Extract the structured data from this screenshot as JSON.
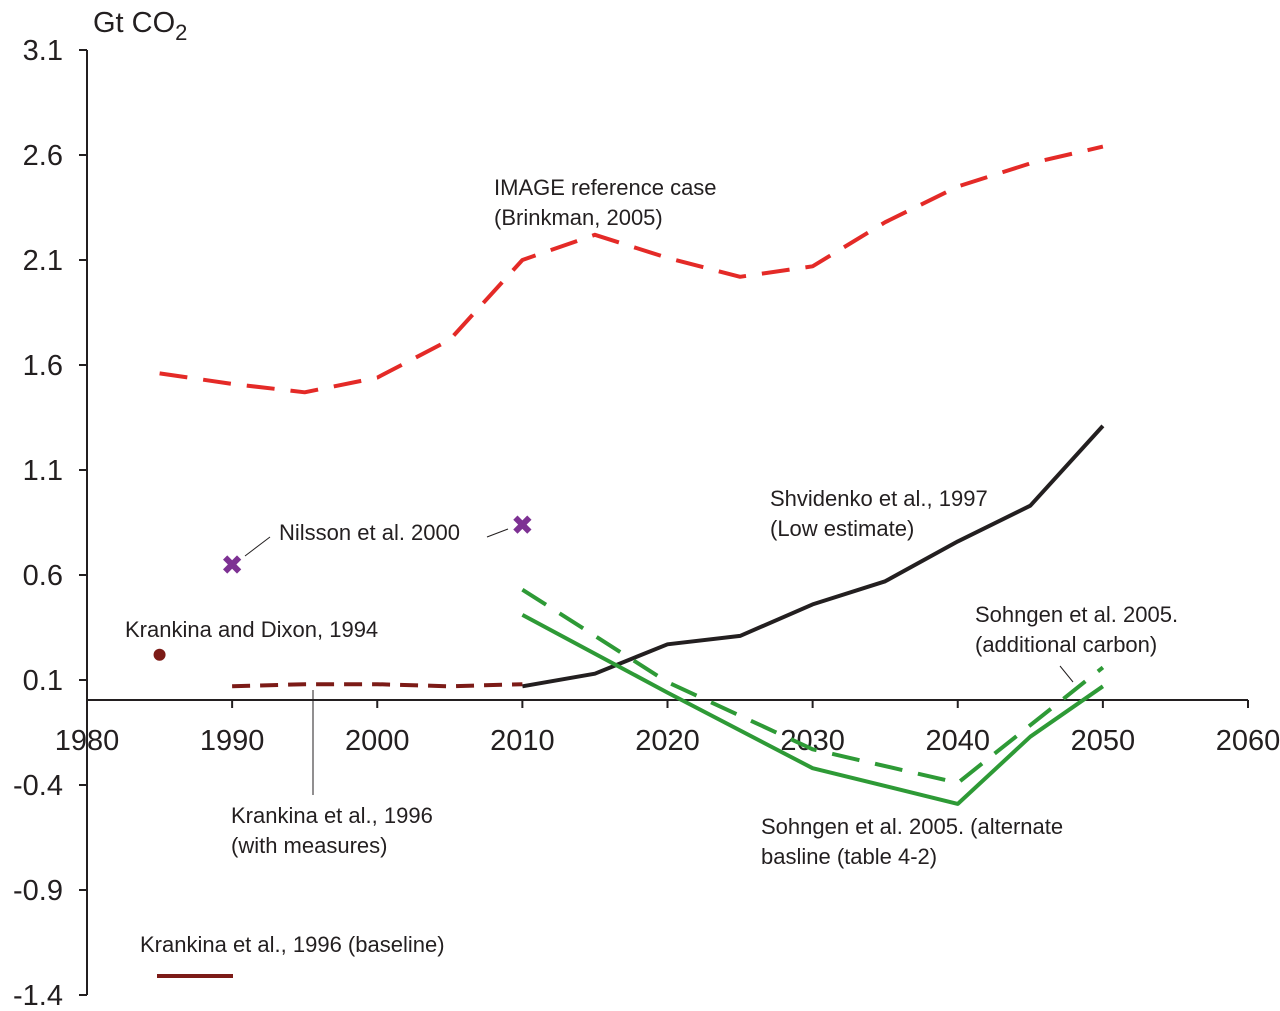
{
  "chart_data": {
    "type": "line",
    "unit": {
      "base": "Gt CO",
      "sub": "2"
    },
    "xlim": [
      1980,
      2060
    ],
    "ylim": [
      -1.4,
      3.1
    ],
    "x_ticks": [
      "1980",
      "1990",
      "2000",
      "2010",
      "2020",
      "2030",
      "2040",
      "2050",
      "2060"
    ],
    "y_ticks": [
      "3.1",
      "2.6",
      "2.1",
      "1.6",
      "1.1",
      "0.6",
      "0.1",
      "-0.4",
      "-0.9",
      "-1.4"
    ],
    "grid": false,
    "series": [
      {
        "key": "image",
        "color": "#e42a27",
        "style": "dashed",
        "x": [
          1985,
          1990,
          1995,
          2000,
          2005,
          2010,
          2015,
          2020,
          2025,
          2030,
          2035,
          2040,
          2045,
          2050
        ],
        "y": [
          1.56,
          1.51,
          1.47,
          1.54,
          1.72,
          2.1,
          2.22,
          2.11,
          2.02,
          2.07,
          2.28,
          2.45,
          2.56,
          2.64
        ]
      },
      {
        "key": "shvidenko",
        "color": "#231f20",
        "style": "solid",
        "x": [
          2010,
          2015,
          2020,
          2025,
          2030,
          2035,
          2040,
          2045,
          2050
        ],
        "y": [
          0.07,
          0.13,
          0.27,
          0.31,
          0.46,
          0.57,
          0.76,
          0.93,
          1.31
        ]
      },
      {
        "key": "sohngen_additional",
        "color": "#2e9a36",
        "style": "dashed",
        "x": [
          2010,
          2020,
          2030,
          2040,
          2050
        ],
        "y": [
          0.53,
          0.09,
          -0.23,
          -0.39,
          0.16
        ]
      },
      {
        "key": "sohngen_alternate",
        "color": "#2e9a36",
        "style": "solid",
        "x": [
          2010,
          2020,
          2030,
          2040,
          2045,
          2050
        ],
        "y": [
          0.41,
          0.04,
          -0.32,
          -0.49,
          -0.17,
          0.07
        ]
      },
      {
        "key": "krankina_measures",
        "color": "#7c1b17",
        "style": "dashed",
        "x": [
          1990,
          1995,
          2000,
          2005,
          2010
        ],
        "y": [
          0.07,
          0.08,
          0.08,
          0.07,
          0.08
        ]
      }
    ],
    "points": [
      {
        "key": "nilsson",
        "color": "#7d3193",
        "marker": "x",
        "x": [
          1990,
          2010
        ],
        "y": [
          0.65,
          0.84
        ]
      },
      {
        "key": "krankina_dixon",
        "color": "#7c1b17",
        "marker": "dot",
        "x": [
          1985
        ],
        "y": [
          0.22
        ]
      }
    ],
    "annotations": {
      "image_line1": "IMAGE reference case",
      "image_line2": "(Brinkman, 2005)",
      "shvidenko_line1": "Shvidenko et al., 1997",
      "shvidenko_line2": "(Low estimate)",
      "nilsson": "Nilsson et al. 2000",
      "krankina_dixon": "Krankina and Dixon, 1994",
      "sohngen_add_line1": "Sohngen et al. 2005.",
      "sohngen_add_line2": "(additional carbon)",
      "krankina_measures_line1": "Krankina et al., 1996",
      "krankina_measures_line2": "(with measures)",
      "sohngen_alt_line1": "Sohngen et al. 2005. (alternate",
      "sohngen_alt_line2": "basline (table 4-2)",
      "krankina_baseline": "Krankina et al., 1996 (baseline)"
    }
  }
}
